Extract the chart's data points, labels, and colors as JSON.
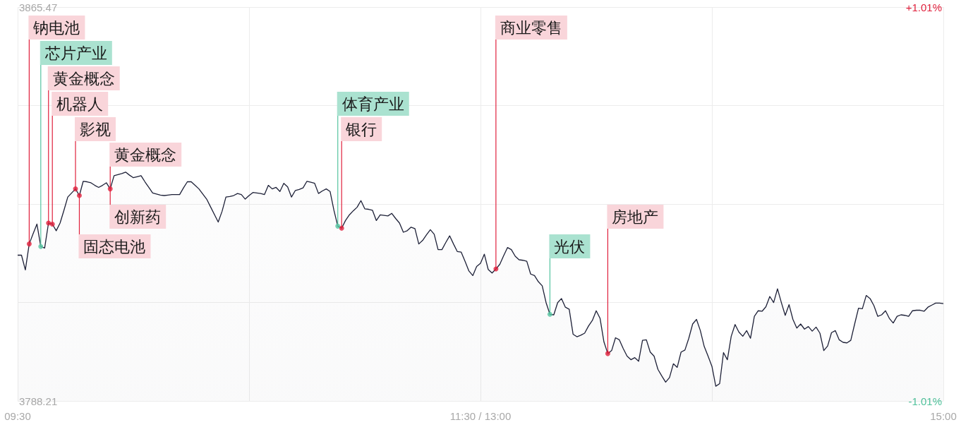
{
  "chart_data": {
    "type": "area",
    "categories": [
      "09:30",
      null,
      null,
      null,
      null,
      null,
      null,
      null,
      null,
      null,
      null,
      null,
      null,
      null,
      null,
      null,
      null,
      null,
      null,
      null,
      null,
      null,
      null,
      null,
      null,
      null,
      null,
      null,
      null,
      null,
      null,
      null,
      null,
      null,
      null,
      null,
      null,
      null,
      null,
      null,
      null,
      null,
      null,
      null,
      null,
      null,
      null,
      null,
      null,
      null,
      null,
      null,
      null,
      null,
      null,
      null,
      null,
      null,
      null,
      null,
      null,
      null,
      null,
      null,
      null,
      null,
      null,
      null,
      null,
      null,
      null,
      null,
      null,
      null,
      null,
      null,
      null,
      null,
      null,
      null,
      null,
      null,
      null,
      null,
      null,
      null,
      null,
      null,
      null,
      null,
      null,
      null,
      null,
      null,
      null,
      null,
      null,
      null,
      null,
      null,
      null,
      null,
      null,
      null,
      null,
      null,
      null,
      null,
      null,
      null,
      null,
      null,
      null,
      null,
      null,
      null,
      null,
      null,
      null,
      null,
      "11:30 / 13:00",
      null,
      null,
      null,
      null,
      null,
      null,
      null,
      null,
      null,
      null,
      null,
      null,
      null,
      null,
      null,
      null,
      null,
      null,
      null,
      null,
      null,
      null,
      null,
      null,
      null,
      null,
      null,
      null,
      null,
      null,
      null,
      null,
      null,
      null,
      null,
      null,
      null,
      null,
      null,
      null,
      null,
      null,
      null,
      null,
      null,
      null,
      null,
      null,
      null,
      null,
      null,
      null,
      null,
      null,
      null,
      null,
      null,
      null,
      null,
      null,
      null,
      null,
      null,
      null,
      null,
      null,
      null,
      null,
      null,
      null,
      null,
      null,
      null,
      null,
      null,
      null,
      null,
      null,
      null,
      null,
      null,
      null,
      null,
      null,
      null,
      null,
      null,
      null,
      null,
      null,
      null,
      null,
      null,
      null,
      null,
      null,
      null,
      null,
      null,
      null,
      null,
      null,
      null,
      null,
      null,
      null,
      null,
      null,
      null,
      null,
      null,
      null,
      null,
      null,
      null,
      null,
      null,
      null,
      null,
      "15:00"
    ],
    "ylim": [
      3788.21,
      3865.47
    ],
    "yticks": [
      3788.21,
      {
        "value": 3807.52,
        "label": null
      },
      {
        "value": 3826.84,
        "label": null
      },
      {
        "value": 3846.15,
        "label": null
      },
      3865.47
    ],
    "y2lim": [
      -1.01,
      1.01
    ],
    "y2ticks": [
      {
        "value": -1.01,
        "label": "-1.01%"
      },
      {
        "value": 1.01,
        "label": "+1.01%"
      }
    ],
    "grid": true,
    "series": [
      {
        "color": "#1d2037",
        "values": [
          3816.8,
          3816.8,
          3813.9,
          3819.0,
          3821.0,
          3822.9,
          3818.5,
          3818.2,
          3823.1,
          3822.9,
          3821.6,
          3823.1,
          3825.6,
          3828.2,
          3829.0,
          3829.8,
          3828.5,
          3831.3,
          3831.2,
          3831.0,
          3830.5,
          3830.1,
          3830.5,
          3831.0,
          3829.8,
          3832.4,
          3832.6,
          3832.8,
          3833.1,
          3832.5,
          3832.0,
          3832.2,
          3832.4,
          3831.2,
          3830.1,
          3829.0,
          3828.8,
          3828.6,
          3828.5,
          3828.6,
          3828.7,
          3828.7,
          3828.7,
          3830.0,
          3831.2,
          3831.2,
          3830.5,
          3829.8,
          3828.8,
          3827.8,
          3826.3,
          3824.8,
          3823.3,
          3825.4,
          3828.2,
          3828.3,
          3828.5,
          3828.9,
          3828.7,
          3827.8,
          3828.5,
          3829.1,
          3829.0,
          3828.9,
          3828.7,
          3830.5,
          3829.8,
          3830.1,
          3829.3,
          3830.9,
          3830.2,
          3828.2,
          3829.5,
          3829.7,
          3830.0,
          3831.3,
          3831.1,
          3830.9,
          3828.9,
          3829.4,
          3829.8,
          3829.3,
          3825.6,
          3822.5,
          3822.1,
          3823.6,
          3824.7,
          3825.5,
          3826.2,
          3827.5,
          3825.9,
          3825.8,
          3825.6,
          3823.6,
          3824.7,
          3824.6,
          3824.5,
          3825.0,
          3824.0,
          3823.1,
          3821.3,
          3821.6,
          3822.3,
          3822.0,
          3819.0,
          3819.7,
          3820.8,
          3821.8,
          3820.9,
          3817.9,
          3817.9,
          3819.3,
          3820.6,
          3819.0,
          3817.5,
          3817.4,
          3815.6,
          3813.7,
          3812.8,
          3814.6,
          3815.2,
          3817.0,
          3814.0,
          3813.3,
          3814.1,
          3815.0,
          3816.7,
          3818.3,
          3817.9,
          3816.6,
          3815.9,
          3815.8,
          3815.6,
          3813.1,
          3812.8,
          3811.6,
          3810.8,
          3807.5,
          3805.2,
          3805.1,
          3807.5,
          3808.3,
          3806.6,
          3806.2,
          3801.3,
          3800.8,
          3801.1,
          3801.5,
          3802.9,
          3804.0,
          3805.9,
          3804.4,
          3799.8,
          3797.5,
          3798.1,
          3800.6,
          3800.2,
          3798.5,
          3797.0,
          3796.3,
          3796.7,
          3796.0,
          3800.1,
          3800.2,
          3797.8,
          3797.0,
          3794.4,
          3793.1,
          3791.9,
          3792.8,
          3795.5,
          3794.8,
          3797.8,
          3798.2,
          3800.5,
          3803.3,
          3804.2,
          3802.0,
          3798.9,
          3797.0,
          3795.0,
          3791.1,
          3791.6,
          3797.7,
          3796.3,
          3800.9,
          3803.2,
          3801.7,
          3800.9,
          3802.0,
          3800.5,
          3804.8,
          3805.9,
          3805.8,
          3806.7,
          3808.7,
          3807.5,
          3810.2,
          3807.5,
          3805.0,
          3807.1,
          3804.2,
          3802.5,
          3803.3,
          3802.3,
          3802.8,
          3801.9,
          3802.7,
          3801.5,
          3798.1,
          3799.0,
          3801.6,
          3802.0,
          3800.2,
          3799.7,
          3799.6,
          3800.1,
          3803.3,
          3806.4,
          3806.3,
          3808.9,
          3808.3,
          3806.9,
          3804.8,
          3805.1,
          3805.9,
          3804.4,
          3803.5,
          3804.8,
          3805.1,
          3805.0,
          3804.8,
          3805.9,
          3806.0,
          3806.0,
          3805.8,
          3806.6,
          3807.0,
          3807.4,
          3807.4,
          3807.3
        ],
        "value_labels": [
          null,
          null,
          null,
          null,
          null,
          null,
          null,
          null,
          null,
          null,
          null,
          null,
          null,
          null,
          null,
          null,
          null,
          null,
          null,
          null,
          null,
          null,
          null,
          null,
          "创新药",
          null,
          null,
          null,
          null,
          null,
          null,
          null,
          null,
          null,
          null,
          null,
          null,
          null,
          null,
          null,
          null,
          null,
          null,
          null,
          null,
          null,
          null,
          null,
          null,
          null,
          null,
          null,
          null,
          null,
          null,
          null,
          null,
          null,
          null,
          null,
          null,
          null,
          null,
          null,
          null,
          null,
          null,
          null,
          null,
          null,
          null,
          null,
          null,
          null,
          null,
          null,
          null,
          null,
          null,
          null,
          null,
          null,
          null,
          null,
          null,
          null,
          null,
          null,
          null,
          null,
          null,
          null,
          null,
          null,
          null,
          null,
          null,
          null,
          null,
          null,
          null,
          null,
          null,
          null,
          null,
          null,
          null,
          null,
          null,
          null,
          null,
          null,
          null,
          null,
          null,
          null,
          null,
          null,
          null,
          null,
          null,
          null,
          null,
          null,
          null,
          null,
          null,
          null,
          null,
          null,
          null,
          null,
          null,
          null,
          null,
          null,
          null,
          null,
          null,
          null,
          null,
          null,
          null,
          null,
          null,
          null,
          null,
          null,
          null,
          null,
          null,
          null,
          null,
          null,
          null,
          null,
          null,
          null,
          null,
          null,
          null,
          null,
          null,
          null,
          null,
          null,
          null,
          null,
          null,
          null,
          null,
          null,
          null,
          null,
          null,
          null,
          null,
          null,
          null,
          null,
          null,
          null,
          null,
          null,
          null,
          null,
          null,
          null,
          null,
          null,
          null,
          null,
          null,
          null,
          null,
          null,
          null,
          null,
          null,
          null,
          null,
          null,
          null,
          null,
          null,
          null,
          null,
          null,
          null,
          null,
          null,
          null,
          null,
          null,
          null,
          null,
          null,
          null,
          null,
          null,
          null,
          null,
          null,
          null,
          null,
          null,
          null,
          null,
          null,
          null,
          null,
          null,
          null,
          null,
          null,
          null,
          null,
          null,
          null,
          null,
          null
        ]
      },
      {
        "type": "scatter",
        "color": "#e0203c",
        "values": [
          null,
          null,
          null,
          3819.0,
          null,
          null,
          null,
          null,
          3823.1,
          3822.9,
          null,
          null,
          null,
          null,
          null,
          3829.8,
          3828.5,
          null,
          null,
          null,
          null,
          null,
          null,
          null,
          3829.8,
          null,
          null,
          null,
          null,
          null,
          null,
          null,
          null,
          null,
          null,
          null,
          null,
          null,
          null,
          null,
          null,
          null,
          null,
          null,
          null,
          null,
          null,
          null,
          null,
          null,
          null,
          null,
          null,
          null,
          null,
          null,
          null,
          null,
          null,
          null,
          null,
          null,
          null,
          null,
          null,
          null,
          null,
          null,
          null,
          null,
          null,
          null,
          null,
          null,
          null,
          null,
          null,
          null,
          null,
          null,
          null,
          null,
          null,
          null,
          3822.1,
          null,
          null,
          null,
          null,
          null,
          null,
          null,
          null,
          null,
          null,
          null,
          null,
          null,
          null,
          null,
          null,
          null,
          null,
          null,
          null,
          null,
          null,
          null,
          null,
          null,
          null,
          null,
          null,
          null,
          null,
          null,
          null,
          null,
          null,
          null,
          null,
          null,
          null,
          null,
          3814.1,
          null,
          null,
          null,
          null,
          null,
          null,
          null,
          null,
          null,
          null,
          null,
          null,
          null,
          null,
          null,
          null,
          null,
          null,
          null,
          null,
          null,
          null,
          null,
          null,
          null,
          null,
          null,
          null,
          3797.5,
          null,
          null,
          null,
          null,
          null,
          null,
          null,
          null,
          null,
          null,
          null,
          null,
          null,
          null,
          null,
          null,
          null,
          null,
          null,
          null,
          null,
          null,
          null,
          null,
          null,
          null,
          null,
          null,
          null,
          null,
          null,
          null,
          null,
          null,
          null,
          null,
          null,
          null,
          null,
          null,
          null,
          null,
          null,
          null,
          null,
          null,
          null,
          null,
          null,
          null,
          null,
          null,
          null,
          null,
          null,
          null,
          null,
          null,
          null,
          null,
          null,
          null,
          null,
          null,
          null,
          null,
          null,
          null,
          null,
          null,
          null,
          null,
          null,
          null,
          null,
          null,
          null,
          null,
          null,
          null,
          null,
          null,
          null,
          null,
          null,
          null,
          null
        ],
        "value_labels": [
          null,
          null,
          null,
          "钠电池",
          null,
          null,
          null,
          null,
          "黄金概念",
          "机器人",
          null,
          null,
          null,
          null,
          null,
          "影视",
          "固态电池",
          null,
          null,
          null,
          null,
          null,
          null,
          null,
          "黄金概念",
          null,
          null,
          null,
          null,
          null,
          null,
          null,
          null,
          null,
          null,
          null,
          null,
          null,
          null,
          null,
          null,
          null,
          null,
          null,
          null,
          null,
          null,
          null,
          null,
          null,
          null,
          null,
          null,
          null,
          null,
          null,
          null,
          null,
          null,
          null,
          null,
          null,
          null,
          null,
          null,
          null,
          null,
          null,
          null,
          null,
          null,
          null,
          null,
          null,
          null,
          null,
          null,
          null,
          null,
          null,
          null,
          null,
          null,
          null,
          "银行",
          null,
          null,
          null,
          null,
          null,
          null,
          null,
          null,
          null,
          null,
          null,
          null,
          null,
          null,
          null,
          null,
          null,
          null,
          null,
          null,
          null,
          null,
          null,
          null,
          null,
          null,
          null,
          null,
          null,
          null,
          null,
          null,
          null,
          null,
          null,
          null,
          null,
          null,
          null,
          "商业零售",
          null,
          null,
          null,
          null,
          null,
          null,
          null,
          null,
          null,
          null,
          null,
          null,
          null,
          null,
          null,
          null,
          null,
          null,
          null,
          null,
          null,
          null,
          null,
          null,
          null,
          null,
          null,
          null,
          "房地产",
          null,
          null,
          null,
          null,
          null,
          null,
          null,
          null,
          null,
          null,
          null,
          null,
          null,
          null,
          null,
          null,
          null,
          null,
          null,
          null,
          null,
          null,
          null,
          null,
          null,
          null,
          null,
          null,
          null,
          null,
          null,
          null,
          null,
          null,
          null,
          null,
          null,
          null,
          null,
          null,
          null,
          null,
          null,
          null,
          null,
          null,
          null,
          null,
          null,
          null,
          null,
          null,
          null,
          null,
          null,
          null,
          null,
          null,
          null,
          null,
          null,
          null,
          null,
          null,
          null,
          null,
          null,
          null,
          null,
          null,
          null,
          null,
          null,
          null,
          null,
          null,
          null,
          null,
          null,
          null,
          null,
          null,
          null,
          null,
          null,
          null,
          null
        ]
      },
      {
        "type": "scatter",
        "color": "#55c4a0",
        "values": [
          null,
          null,
          null,
          null,
          null,
          null,
          3818.5,
          null,
          null,
          null,
          null,
          null,
          null,
          null,
          null,
          null,
          null,
          null,
          null,
          null,
          null,
          null,
          null,
          null,
          null,
          null,
          null,
          null,
          null,
          null,
          null,
          null,
          null,
          null,
          null,
          null,
          null,
          null,
          null,
          null,
          null,
          null,
          null,
          null,
          null,
          null,
          null,
          null,
          null,
          null,
          null,
          null,
          null,
          null,
          null,
          null,
          null,
          null,
          null,
          null,
          null,
          null,
          null,
          null,
          null,
          null,
          null,
          null,
          null,
          null,
          null,
          null,
          null,
          null,
          null,
          null,
          null,
          null,
          null,
          null,
          null,
          null,
          null,
          3822.5,
          null,
          null,
          null,
          null,
          null,
          null,
          null,
          null,
          null,
          null,
          null,
          null,
          null,
          null,
          null,
          null,
          null,
          null,
          null,
          null,
          null,
          null,
          null,
          null,
          null,
          null,
          null,
          null,
          null,
          null,
          null,
          null,
          null,
          null,
          null,
          null,
          null,
          null,
          null,
          null,
          null,
          null,
          null,
          null,
          null,
          null,
          null,
          null,
          null,
          null,
          null,
          null,
          null,
          null,
          3805.2,
          null,
          null,
          null,
          null,
          null,
          null,
          null,
          null,
          null,
          null,
          null,
          null,
          null,
          null,
          null,
          null,
          null,
          null,
          null,
          null,
          null,
          null,
          null,
          null,
          null,
          null,
          null,
          null,
          null,
          null,
          null,
          null,
          null,
          null,
          null,
          null,
          null,
          null,
          null,
          null,
          null,
          null,
          null,
          null,
          null,
          null,
          null,
          null,
          null,
          null,
          null,
          null,
          null,
          null,
          null,
          null,
          null,
          null,
          null,
          null,
          null,
          null,
          null,
          null,
          null,
          null,
          null,
          null,
          null,
          null,
          null,
          null,
          null,
          null,
          null,
          null,
          null,
          null,
          null,
          null,
          null,
          null,
          null,
          null,
          null,
          null,
          null,
          null,
          null,
          null,
          null,
          null,
          null,
          null,
          null,
          null,
          null,
          null,
          null,
          null,
          null,
          null
        ],
        "value_labels": [
          null,
          null,
          null,
          null,
          null,
          null,
          "芯片产业",
          null,
          null,
          null,
          null,
          null,
          null,
          null,
          null,
          null,
          null,
          null,
          null,
          null,
          null,
          null,
          null,
          null,
          null,
          null,
          null,
          null,
          null,
          null,
          null,
          null,
          null,
          null,
          null,
          null,
          null,
          null,
          null,
          null,
          null,
          null,
          null,
          null,
          null,
          null,
          null,
          null,
          null,
          null,
          null,
          null,
          null,
          null,
          null,
          null,
          null,
          null,
          null,
          null,
          null,
          null,
          null,
          null,
          null,
          null,
          null,
          null,
          null,
          null,
          null,
          null,
          null,
          null,
          null,
          null,
          null,
          null,
          null,
          null,
          null,
          null,
          null,
          "体育产业",
          null,
          null,
          null,
          null,
          null,
          null,
          null,
          null,
          null,
          null,
          null,
          null,
          null,
          null,
          null,
          null,
          null,
          null,
          null,
          null,
          null,
          null,
          null,
          null,
          null,
          null,
          null,
          null,
          null,
          null,
          null,
          null,
          null,
          null,
          null,
          null,
          null,
          null,
          null,
          null,
          null,
          null,
          null,
          null,
          null,
          null,
          null,
          null,
          null,
          null,
          null,
          null,
          null,
          null,
          "光伏",
          null,
          null,
          null,
          null,
          null,
          null,
          null,
          null,
          null,
          null,
          null,
          null,
          null,
          null,
          null,
          null,
          null,
          null,
          null,
          null,
          null,
          null,
          null,
          null,
          null,
          null,
          null,
          null,
          null,
          null,
          null,
          null,
          null,
          null,
          null,
          null,
          null,
          null,
          null,
          null,
          null,
          null,
          null,
          null,
          null,
          null,
          null,
          null,
          null,
          null,
          null,
          null,
          null,
          null,
          null,
          null,
          null,
          null,
          null,
          null,
          null,
          null,
          null,
          null,
          null,
          null,
          null,
          null,
          null,
          null,
          null,
          null,
          null,
          null,
          null,
          null,
          null,
          null,
          null,
          null,
          null,
          null,
          null,
          null,
          null,
          null,
          null,
          null,
          null,
          null,
          null,
          null,
          null,
          null,
          null,
          null,
          null,
          null,
          null,
          null,
          null,
          null
        ]
      }
    ]
  }
}
